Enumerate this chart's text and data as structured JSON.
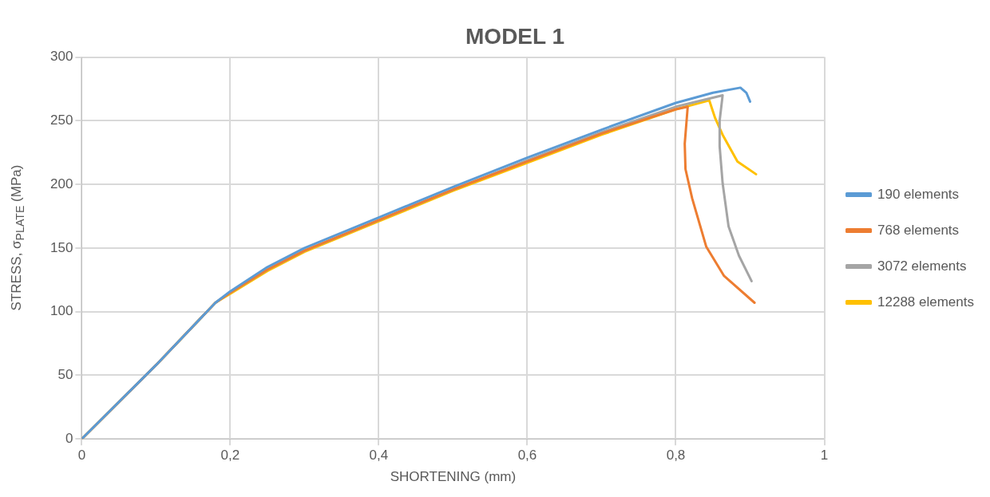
{
  "chart_data": {
    "type": "line",
    "title": "MODEL 1",
    "xlabel": "SHORTENING (mm)",
    "ylabel": "STRESS, σ$_{PLATE}$ (MPa)",
    "xlim": [
      0,
      1
    ],
    "xticks": [
      {
        "value": 0,
        "label": "0"
      },
      {
        "value": 0.2,
        "label": "0,2"
      },
      {
        "value": 0.4,
        "label": "0,4"
      },
      {
        "value": 0.6,
        "label": "0,6"
      },
      {
        "value": 0.8,
        "label": "0,8"
      },
      {
        "value": 1,
        "label": "1"
      }
    ],
    "ylim": [
      0,
      300
    ],
    "yticks": [
      0,
      50,
      100,
      150,
      200,
      250,
      300
    ],
    "grid": true,
    "legend": "right",
    "marker": "none",
    "line_style": "solid",
    "series": [
      {
        "name": "190 elements",
        "color": "#5b9bd5",
        "x": [
          0,
          0.1,
          0.18,
          0.2,
          0.25,
          0.3,
          0.4,
          0.5,
          0.6,
          0.7,
          0.8,
          0.85,
          0.887,
          0.895,
          0.9
        ],
        "values": [
          0,
          58,
          107,
          116,
          135,
          150,
          174,
          198,
          221,
          243,
          264,
          272,
          276,
          272,
          265
        ]
      },
      {
        "name": "768 elements",
        "color": "#ed7d31",
        "x": [
          0,
          0.1,
          0.18,
          0.2,
          0.25,
          0.3,
          0.4,
          0.5,
          0.6,
          0.7,
          0.8,
          0.816,
          0.812,
          0.813,
          0.822,
          0.841,
          0.865,
          0.906
        ],
        "values": [
          0,
          58,
          107,
          115,
          133,
          148,
          172,
          196,
          218,
          240,
          259,
          261,
          232,
          212,
          189,
          151,
          128,
          107
        ]
      },
      {
        "name": "3072 elements",
        "color": "#a5a5a5",
        "x": [
          0,
          0.1,
          0.18,
          0.2,
          0.25,
          0.3,
          0.4,
          0.5,
          0.6,
          0.7,
          0.8,
          0.863,
          0.859,
          0.859,
          0.863,
          0.871,
          0.885,
          0.902
        ],
        "values": [
          0,
          58,
          107,
          115,
          133,
          148,
          172,
          196,
          219,
          241,
          261,
          270,
          250,
          230,
          201,
          167,
          144,
          124
        ]
      },
      {
        "name": "12288 elements",
        "color": "#ffc000",
        "x": [
          0,
          0.1,
          0.18,
          0.2,
          0.25,
          0.3,
          0.4,
          0.5,
          0.6,
          0.7,
          0.8,
          0.845,
          0.853,
          0.863,
          0.883,
          0.908
        ],
        "values": [
          0,
          58,
          107,
          114,
          132,
          147,
          171,
          195,
          217,
          239,
          259,
          266,
          252,
          239,
          218,
          208
        ]
      }
    ]
  }
}
